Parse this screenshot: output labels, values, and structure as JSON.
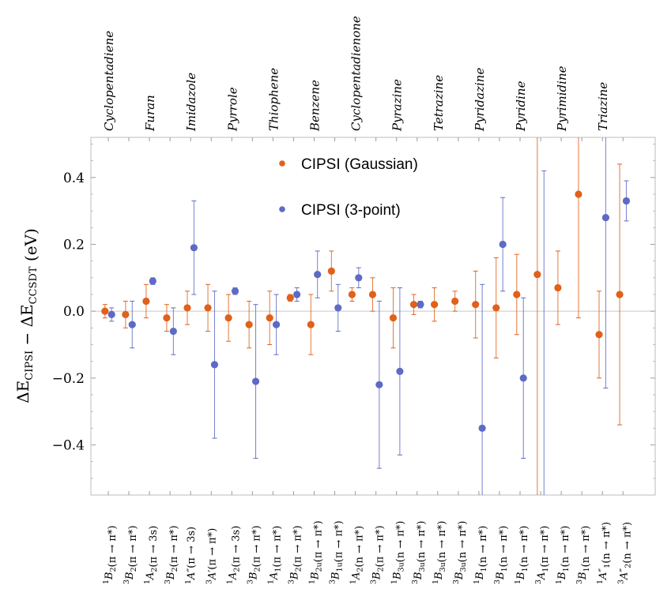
{
  "chart_data": {
    "type": "scatter",
    "ylabel_parts": [
      {
        "t": "ΔE",
        "italic": false
      },
      {
        "t": "CIPSI",
        "sub": true
      },
      {
        "t": " − ΔE",
        "italic": false
      },
      {
        "t": "CCSDT",
        "sub": true
      },
      {
        "t": " (eV)",
        "italic": false
      }
    ],
    "ylim": [
      -0.55,
      0.52
    ],
    "yticks": [
      {
        "value": 0.4,
        "label": "0.4"
      },
      {
        "value": 0.2,
        "label": "0.2"
      },
      {
        "value": 0.0,
        "label": "0.0"
      },
      {
        "value": -0.2,
        "label": "−0.2"
      },
      {
        "value": -0.4,
        "label": "−0.4"
      }
    ],
    "molecules": [
      {
        "name": "Cyclopentadiene",
        "index": 1
      },
      {
        "name": "Furan",
        "index": 3
      },
      {
        "name": "Imidazole",
        "index": 5
      },
      {
        "name": "Pyrrole",
        "index": 7
      },
      {
        "name": "Thiophene",
        "index": 9
      },
      {
        "name": "Benzene",
        "index": 11
      },
      {
        "name": "Cyclopentadienone",
        "index": 13
      },
      {
        "name": "Pyrazine",
        "index": 15
      },
      {
        "name": "Tetrazine",
        "index": 17
      },
      {
        "name": "Pyridazine",
        "index": 19
      },
      {
        "name": "Pyridine",
        "index": 21
      },
      {
        "name": "Pyrimidine",
        "index": 23
      },
      {
        "name": "Triazine",
        "index": 25
      }
    ],
    "categories": [
      {
        "mult": "1",
        "sym": "B",
        "sub": "2",
        "tr": "(π → π*)"
      },
      {
        "mult": "3",
        "sym": "B",
        "sub": "2",
        "tr": "(π → π*)"
      },
      {
        "mult": "1",
        "sym": "A",
        "sub": "2",
        "tr": "(π → 3s)"
      },
      {
        "mult": "3",
        "sym": "B",
        "sub": "2",
        "tr": "(π → π*)"
      },
      {
        "mult": "1",
        "sym": "A″",
        "sub": "",
        "tr": "(π → 3s)"
      },
      {
        "mult": "3",
        "sym": "A′",
        "sub": "",
        "tr": "(π → π*)"
      },
      {
        "mult": "1",
        "sym": "A",
        "sub": "2",
        "tr": "(π → 3s)"
      },
      {
        "mult": "3",
        "sym": "B",
        "sub": "2",
        "tr": "(π → π*)"
      },
      {
        "mult": "1",
        "sym": "A",
        "sub": "1",
        "tr": "(π → π*)"
      },
      {
        "mult": "3",
        "sym": "B",
        "sub": "2",
        "tr": "(π → π*)"
      },
      {
        "mult": "1",
        "sym": "B",
        "sub": "2u",
        "tr": "(π → π*)"
      },
      {
        "mult": "3",
        "sym": "B",
        "sub": "1u",
        "tr": "(π → π*)"
      },
      {
        "mult": "1",
        "sym": "A",
        "sub": "2",
        "tr": "(n → π*)"
      },
      {
        "mult": "3",
        "sym": "B",
        "sub": "2",
        "tr": "(π → π*)"
      },
      {
        "mult": "1",
        "sym": "B",
        "sub": "3u",
        "tr": "(n → π*)"
      },
      {
        "mult": "3",
        "sym": "B",
        "sub": "3u",
        "tr": "(n → π*)"
      },
      {
        "mult": "1",
        "sym": "B",
        "sub": "3u",
        "tr": "(n → π*)"
      },
      {
        "mult": "3",
        "sym": "B",
        "sub": "3u",
        "tr": "(n → π*)"
      },
      {
        "mult": "1",
        "sym": "B",
        "sub": "1",
        "tr": "(n → π*)"
      },
      {
        "mult": "3",
        "sym": "B",
        "sub": "1",
        "tr": "(n → π*)"
      },
      {
        "mult": "1",
        "sym": "B",
        "sub": "1",
        "tr": "(n → π*)"
      },
      {
        "mult": "3",
        "sym": "A",
        "sub": "1",
        "tr": "(π → π*)"
      },
      {
        "mult": "1",
        "sym": "B",
        "sub": "1",
        "tr": "(n → π*)"
      },
      {
        "mult": "3",
        "sym": "B",
        "sub": "1",
        "tr": "(n → π*)"
      },
      {
        "mult": "1",
        "sym": "A″",
        "sub": "1",
        "tr": "(n → π*)"
      },
      {
        "mult": "3",
        "sym": "A″",
        "sub": "2",
        "tr": "(n → π*)"
      }
    ],
    "series": [
      {
        "name": "CIPSI (Gaussian)",
        "color": "#e1601a",
        "points": [
          {
            "x": 1,
            "y": 0.0,
            "lo": -0.02,
            "hi": 0.02
          },
          {
            "x": 2,
            "y": -0.01,
            "lo": -0.05,
            "hi": 0.03
          },
          {
            "x": 3,
            "y": 0.03,
            "lo": -0.02,
            "hi": 0.08
          },
          {
            "x": 4,
            "y": -0.02,
            "lo": -0.06,
            "hi": 0.02
          },
          {
            "x": 5,
            "y": 0.01,
            "lo": -0.04,
            "hi": 0.06
          },
          {
            "x": 6,
            "y": 0.01,
            "lo": -0.06,
            "hi": 0.08
          },
          {
            "x": 7,
            "y": -0.02,
            "lo": -0.09,
            "hi": 0.05
          },
          {
            "x": 8,
            "y": -0.04,
            "lo": -0.11,
            "hi": 0.03
          },
          {
            "x": 9,
            "y": -0.02,
            "lo": -0.1,
            "hi": 0.06
          },
          {
            "x": 10,
            "y": 0.04,
            "lo": 0.03,
            "hi": 0.05
          },
          {
            "x": 11,
            "y": -0.04,
            "lo": -0.13,
            "hi": 0.05
          },
          {
            "x": 12,
            "y": 0.12,
            "lo": 0.06,
            "hi": 0.18
          },
          {
            "x": 13,
            "y": 0.05,
            "lo": 0.03,
            "hi": 0.07
          },
          {
            "x": 14,
            "y": 0.05,
            "lo": 0.0,
            "hi": 0.1
          },
          {
            "x": 15,
            "y": -0.02,
            "lo": -0.11,
            "hi": 0.07
          },
          {
            "x": 16,
            "y": 0.02,
            "lo": -0.01,
            "hi": 0.05
          },
          {
            "x": 17,
            "y": 0.02,
            "lo": -0.03,
            "hi": 0.07
          },
          {
            "x": 18,
            "y": 0.03,
            "lo": 0.0,
            "hi": 0.06
          },
          {
            "x": 19,
            "y": 0.02,
            "lo": -0.08,
            "hi": 0.12
          },
          {
            "x": 20,
            "y": 0.01,
            "lo": -0.14,
            "hi": 0.16
          },
          {
            "x": 21,
            "y": 0.05,
            "lo": -0.07,
            "hi": 0.17
          },
          {
            "x": 22,
            "y": 0.11,
            "lo": -0.6,
            "hi": 0.6
          },
          {
            "x": 23,
            "y": 0.07,
            "lo": -0.04,
            "hi": 0.18
          },
          {
            "x": 24,
            "y": 0.35,
            "lo": -0.02,
            "hi": 0.6
          },
          {
            "x": 25,
            "y": -0.07,
            "lo": -0.2,
            "hi": 0.06
          },
          {
            "x": 26,
            "y": 0.05,
            "lo": -0.34,
            "hi": 0.44
          }
        ]
      },
      {
        "name": "CIPSI (3-point)",
        "color": "#5e6ac4",
        "points": [
          {
            "x": 1,
            "y": -0.01,
            "lo": -0.03,
            "hi": 0.01
          },
          {
            "x": 2,
            "y": -0.04,
            "lo": -0.11,
            "hi": 0.03
          },
          {
            "x": 3,
            "y": 0.09,
            "lo": 0.08,
            "hi": 0.1
          },
          {
            "x": 4,
            "y": -0.06,
            "lo": -0.13,
            "hi": 0.01
          },
          {
            "x": 5,
            "y": 0.19,
            "lo": 0.05,
            "hi": 0.33
          },
          {
            "x": 6,
            "y": -0.16,
            "lo": -0.38,
            "hi": 0.06
          },
          {
            "x": 7,
            "y": 0.06,
            "lo": 0.05,
            "hi": 0.07
          },
          {
            "x": 8,
            "y": -0.21,
            "lo": -0.44,
            "hi": 0.02
          },
          {
            "x": 9,
            "y": -0.04,
            "lo": -0.13,
            "hi": 0.05
          },
          {
            "x": 10,
            "y": 0.05,
            "lo": 0.03,
            "hi": 0.07
          },
          {
            "x": 11,
            "y": 0.11,
            "lo": 0.04,
            "hi": 0.18
          },
          {
            "x": 12,
            "y": 0.01,
            "lo": -0.06,
            "hi": 0.08
          },
          {
            "x": 13,
            "y": 0.1,
            "lo": 0.07,
            "hi": 0.13
          },
          {
            "x": 14,
            "y": -0.22,
            "lo": -0.47,
            "hi": 0.03
          },
          {
            "x": 15,
            "y": -0.18,
            "lo": -0.43,
            "hi": 0.07
          },
          {
            "x": 16,
            "y": 0.02,
            "lo": 0.01,
            "hi": 0.03
          },
          {
            "x": 19,
            "y": -0.35,
            "lo": -0.6,
            "hi": 0.08
          },
          {
            "x": 20,
            "y": 0.2,
            "lo": 0.06,
            "hi": 0.34
          },
          {
            "x": 21,
            "y": -0.2,
            "lo": -0.44,
            "hi": 0.04
          },
          {
            "x": 22,
            "y": null,
            "lo": -0.6,
            "hi": 0.42
          },
          {
            "x": 25,
            "y": 0.28,
            "lo": -0.23,
            "hi": 0.6
          },
          {
            "x": 26,
            "y": 0.33,
            "lo": 0.27,
            "hi": 0.39
          }
        ]
      }
    ],
    "legend": "top-center",
    "grid": false,
    "zero_line": true
  }
}
